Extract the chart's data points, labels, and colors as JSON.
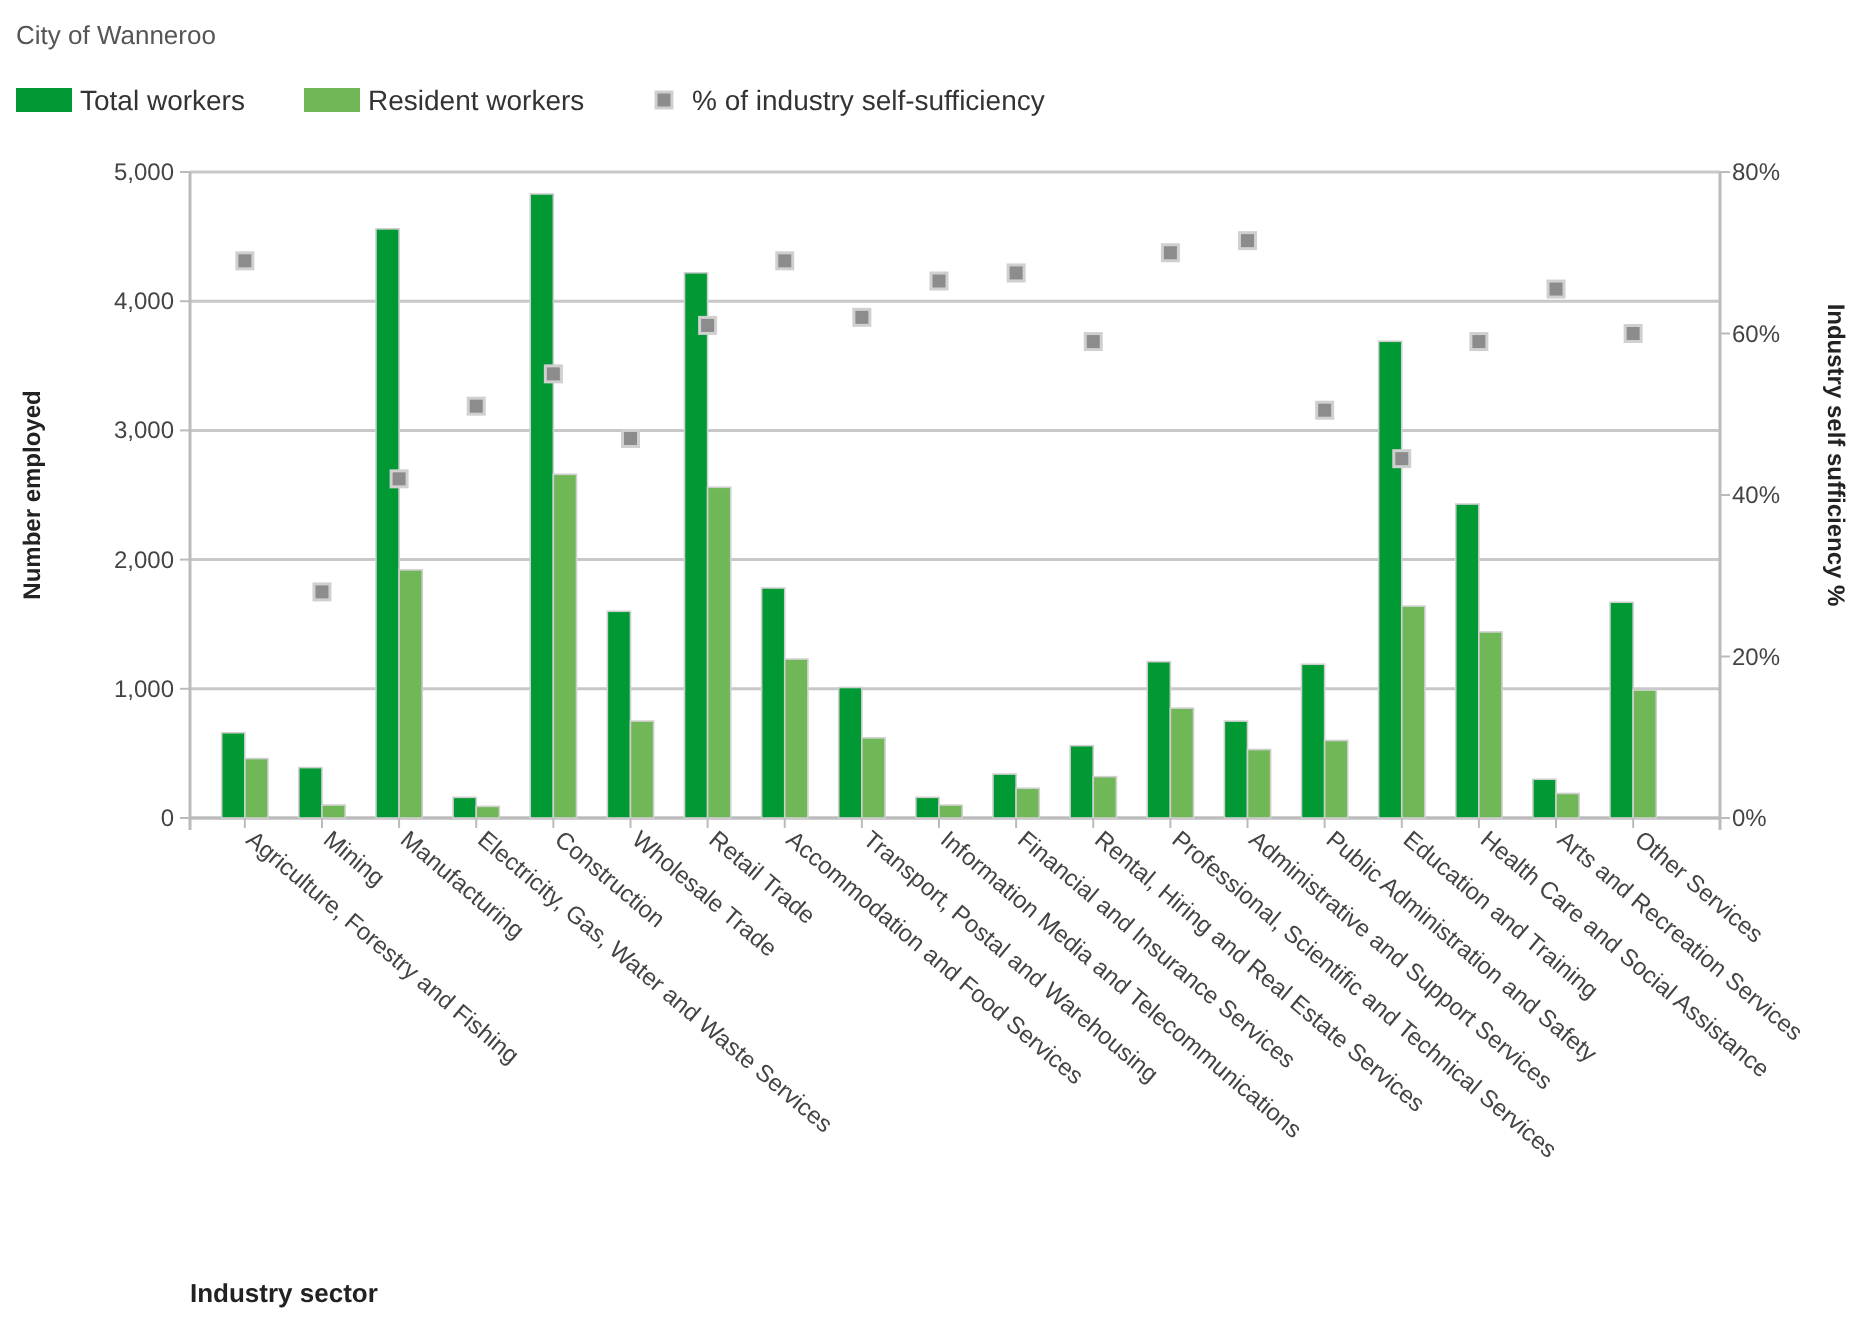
{
  "chart_data": {
    "type": "bar",
    "title": "City of Wanneroo",
    "xlabel": "Industry sector",
    "ylabel": "Number employed",
    "y2label": "Industry self sufficiency %",
    "categories": [
      "Agriculture, Forestry and Fishing",
      "Mining",
      "Manufacturing",
      "Electricity, Gas, Water and Waste Services",
      "Construction",
      "Wholesale Trade",
      "Retail Trade",
      "Accommodation and Food Services",
      "Transport, Postal and Warehousing",
      "Information Media and Telecommunications",
      "Financial and Insurance Services",
      "Rental, Hiring and Real Estate Services",
      "Professional, Scientific and Technical Services",
      "Administrative and Support Services",
      "Public Administration and Safety",
      "Education and Training",
      "Health Care and Social Assistance",
      "Arts and Recreation Services",
      "Other Services"
    ],
    "series": [
      {
        "name": "Total workers",
        "color": "#009933",
        "values": [
          660,
          390,
          4560,
          160,
          4830,
          1600,
          4220,
          1780,
          1010,
          160,
          340,
          560,
          1210,
          750,
          1190,
          3690,
          2430,
          300,
          1670
        ]
      },
      {
        "name": "Resident workers",
        "color": "#70b857",
        "values": [
          460,
          100,
          1920,
          90,
          2660,
          750,
          2560,
          1230,
          620,
          100,
          230,
          320,
          850,
          530,
          600,
          1640,
          1440,
          190,
          990
        ]
      },
      {
        "name": "% of industry self-sufficiency",
        "type": "scatter",
        "axis": "y2",
        "color": "#8c8c8c",
        "marker": "square",
        "values": [
          69,
          28,
          42,
          51,
          55,
          47,
          61,
          69,
          62,
          66.5,
          67.5,
          59,
          70,
          71.5,
          50.5,
          44.5,
          59,
          65.5,
          60
        ]
      }
    ],
    "ylim": [
      0,
      5000
    ],
    "yticks": [
      {
        "value": 0,
        "label": "0"
      },
      {
        "value": 1000,
        "label": "1,000"
      },
      {
        "value": 2000,
        "label": "2,000"
      },
      {
        "value": 3000,
        "label": "3,000"
      },
      {
        "value": 4000,
        "label": "4,000"
      },
      {
        "value": 5000,
        "label": "5,000"
      }
    ],
    "y2lim": [
      0,
      80
    ],
    "y2ticks": [
      {
        "value": 0,
        "label": "0%"
      },
      {
        "value": 20,
        "label": "20%"
      },
      {
        "value": 40,
        "label": "40%"
      },
      {
        "value": 60,
        "label": "60%"
      },
      {
        "value": 80,
        "label": "80%"
      }
    ],
    "grid": "y",
    "legend": "top left"
  }
}
